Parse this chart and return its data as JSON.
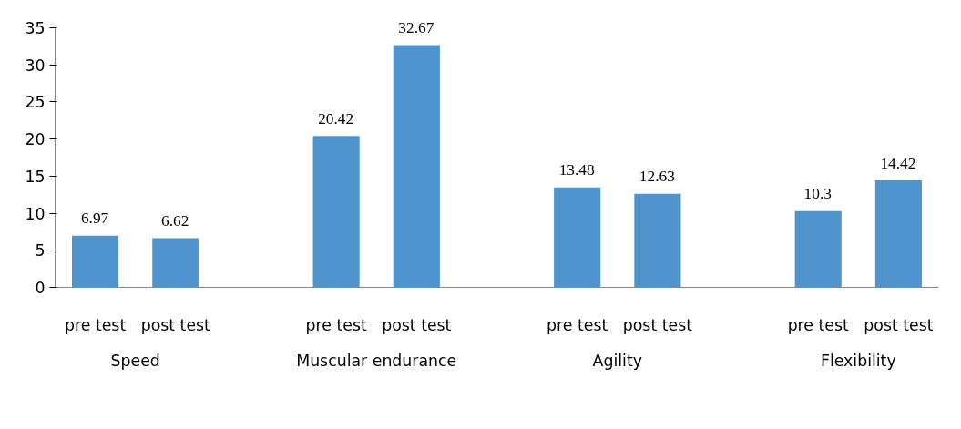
{
  "chart_data": {
    "type": "bar",
    "categories": [
      "pre test",
      "post test",
      null,
      "pre test",
      "post test",
      null,
      "pre test",
      "post test",
      null,
      "pre test",
      "post test"
    ],
    "values": [
      6.97,
      6.62,
      null,
      20.42,
      32.67,
      null,
      13.48,
      12.63,
      null,
      10.3,
      14.42
    ],
    "color": "#4f94cd",
    "ylim": [
      0,
      35
    ],
    "yticks": [
      0,
      5,
      10,
      15,
      20,
      25,
      30,
      35
    ],
    "grid": false,
    "data_labels": true,
    "annotations": [
      "Speed",
      "Muscular endurance",
      "Agility",
      "Flexibility"
    ]
  }
}
